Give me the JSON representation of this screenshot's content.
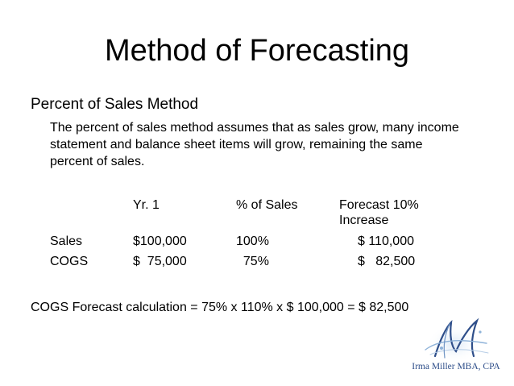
{
  "title": "Method of Forecasting",
  "heading": "Percent of Sales Method",
  "description": "The percent of sales method assumes that as sales grow, many income statement and balance sheet items will grow, remaining the same percent of sales.",
  "table": {
    "headers": [
      "",
      "Yr. 1",
      "% of Sales",
      "Forecast 10%",
      "Increase"
    ],
    "rows": [
      {
        "label": "Sales",
        "yr1": "$100,000",
        "pct": "100%",
        "forecast": "$ 110,000"
      },
      {
        "label": "COGS",
        "yr1": "$  75,000",
        "pct": "  75%",
        "forecast": "$   82,500"
      }
    ]
  },
  "calculation": "COGS Forecast calculation = 75% x 110% x $ 100,000 = $ 82,500",
  "logo": {
    "text": "Irma Miller MBA, CPA",
    "primary_color": "#2f4f8a",
    "accent_color": "#8fb3d9"
  }
}
